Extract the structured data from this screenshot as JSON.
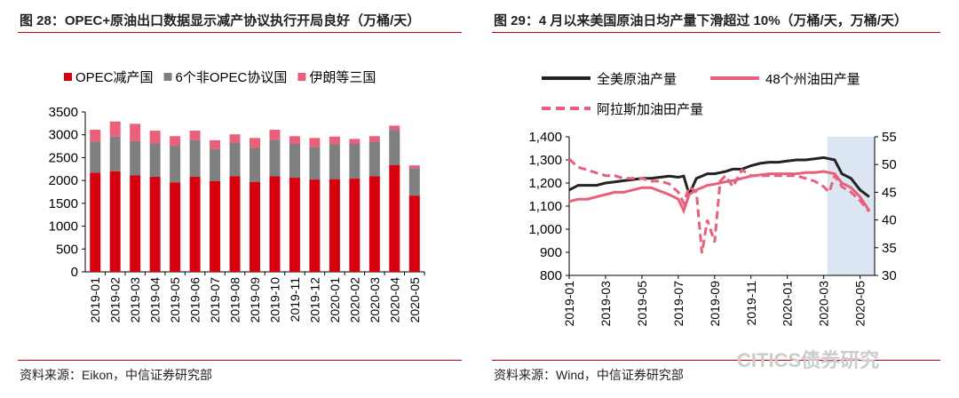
{
  "chart_data": [
    {
      "type": "bar",
      "stacked": true,
      "title": "图 28：OPEC+原油出口数据显示减产协议执行开局良好（万桶/天）",
      "categories": [
        "2019-01",
        "2019-02",
        "2019-03",
        "2019-04",
        "2019-05",
        "2019-06",
        "2019-07",
        "2019-08",
        "2019-09",
        "2019-10",
        "2019-11",
        "2019-12",
        "2020-01",
        "2020-02",
        "2020-03",
        "2020-04",
        "2020-05"
      ],
      "series": [
        {
          "name": "OPEC减产国",
          "color": "#d7000f",
          "values": [
            2170,
            2200,
            2110,
            2080,
            1960,
            2080,
            1990,
            2090,
            1970,
            2090,
            2060,
            2020,
            2030,
            2040,
            2090,
            2340,
            1670
          ]
        },
        {
          "name": "6个非OPEC协议国",
          "color": "#7f7f7f",
          "values": [
            680,
            760,
            750,
            730,
            800,
            800,
            700,
            730,
            750,
            800,
            740,
            710,
            760,
            760,
            760,
            770,
            600
          ]
        },
        {
          "name": "伊朗等三国",
          "color": "#e8607a",
          "values": [
            260,
            330,
            380,
            280,
            210,
            210,
            190,
            190,
            210,
            220,
            170,
            200,
            170,
            110,
            120,
            90,
            60
          ]
        }
      ],
      "ylim": [
        0,
        3500
      ],
      "yticks": [
        "0",
        "500",
        "1000",
        "1500",
        "2000",
        "2500",
        "3000",
        "3500"
      ],
      "legend": "top",
      "source": "资料来源：Eikon，中信证券研究部"
    },
    {
      "type": "line",
      "title": "图 29：4 月以来美国原油日均产量下滑超过 10%（万桶/天，万桶/天）",
      "x_months": [
        0,
        0.5,
        1,
        1.5,
        2,
        2.5,
        3,
        3.5,
        4,
        4.5,
        5,
        5.5,
        6,
        6.3,
        6.6,
        7,
        7.3,
        7.6,
        8,
        8.3,
        8.6,
        9,
        9.5,
        10,
        10.5,
        11,
        11.5,
        12,
        12.5,
        13,
        13.5,
        14,
        14.3,
        14.6,
        15,
        15.5,
        16,
        16.5
      ],
      "xticks": [
        "2019-01",
        "2019-03",
        "2019-05",
        "2019-07",
        "2019-09",
        "2019-11",
        "2020-01",
        "2020-03",
        "2020-05"
      ],
      "series": [
        {
          "name": "全美原油产量",
          "axis": "left",
          "style": "solid",
          "color": "#222222",
          "values": [
            1170,
            1190,
            1190,
            1190,
            1200,
            1205,
            1210,
            1215,
            1220,
            1220,
            1225,
            1230,
            1225,
            1230,
            1150,
            1220,
            1230,
            1240,
            1240,
            1245,
            1250,
            1260,
            1260,
            1275,
            1285,
            1290,
            1290,
            1295,
            1300,
            1300,
            1305,
            1310,
            1305,
            1300,
            1240,
            1220,
            1170,
            1140
          ]
        },
        {
          "name": "48个州油田产量",
          "axis": "left",
          "style": "solid",
          "color": "#e8607a",
          "values": [
            1120,
            1130,
            1130,
            1140,
            1150,
            1160,
            1160,
            1170,
            1180,
            1180,
            1165,
            1150,
            1130,
            1080,
            1150,
            1170,
            1180,
            1190,
            1195,
            1200,
            1205,
            1210,
            1220,
            1230,
            1235,
            1240,
            1240,
            1240,
            1240,
            1245,
            1245,
            1250,
            1245,
            1240,
            1200,
            1180,
            1140,
            1080
          ]
        },
        {
          "name": "阿拉斯加油田产量",
          "axis": "right",
          "style": "dashed",
          "color": "#e8607a",
          "values": [
            51,
            49.5,
            49,
            48.5,
            48,
            48,
            47.5,
            47.5,
            47.5,
            47,
            47,
            46.5,
            45,
            43,
            46,
            45,
            34,
            40,
            36,
            47,
            48,
            46,
            49,
            48,
            48,
            48,
            48,
            48,
            48,
            47.5,
            47,
            46,
            45,
            48,
            46,
            45,
            43.5,
            41.5
          ]
        }
      ],
      "ylim_left": [
        800,
        1400
      ],
      "yticks_left": [
        "800",
        "900",
        "1,000",
        "1,100",
        "1,200",
        "1,300",
        "1,400"
      ],
      "ylim_right": [
        30,
        55
      ],
      "yticks_right": [
        "30",
        "35",
        "40",
        "45",
        "50",
        "55"
      ],
      "shaded_from_month": 14.2,
      "shade_color": "#dce6f2",
      "source": "资料来源：Wind，中信证券研究部"
    }
  ],
  "watermark": "CITICS债券研究"
}
